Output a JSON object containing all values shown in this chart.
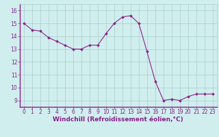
{
  "x": [
    0,
    1,
    2,
    3,
    4,
    5,
    6,
    7,
    8,
    9,
    10,
    11,
    12,
    13,
    14,
    15,
    16,
    17,
    18,
    19,
    20,
    21,
    22,
    23
  ],
  "y": [
    15.0,
    14.5,
    14.4,
    13.9,
    13.6,
    13.3,
    13.0,
    13.0,
    13.3,
    13.3,
    14.2,
    15.0,
    15.5,
    15.6,
    15.0,
    12.8,
    10.5,
    9.0,
    9.1,
    9.0,
    9.3,
    9.5,
    9.5,
    9.5
  ],
  "line_color": "#882288",
  "marker": "D",
  "marker_size": 2.0,
  "bg_color": "#d0eeee",
  "grid_color": "#aacccc",
  "xlabel": "Windchill (Refroidissement éolien,°C)",
  "xlabel_color": "#882288",
  "xlabel_fontsize": 6.5,
  "tick_color": "#882288",
  "tick_fontsize": 5.5,
  "ylim": [
    8.5,
    16.5
  ],
  "xlim": [
    -0.5,
    23.5
  ],
  "yticks": [
    9,
    10,
    11,
    12,
    13,
    14,
    15,
    16
  ],
  "xticks": [
    0,
    1,
    2,
    3,
    4,
    5,
    6,
    7,
    8,
    9,
    10,
    11,
    12,
    13,
    14,
    15,
    16,
    17,
    18,
    19,
    20,
    21,
    22,
    23
  ],
  "spine_color": "#882288",
  "linewidth": 0.8
}
